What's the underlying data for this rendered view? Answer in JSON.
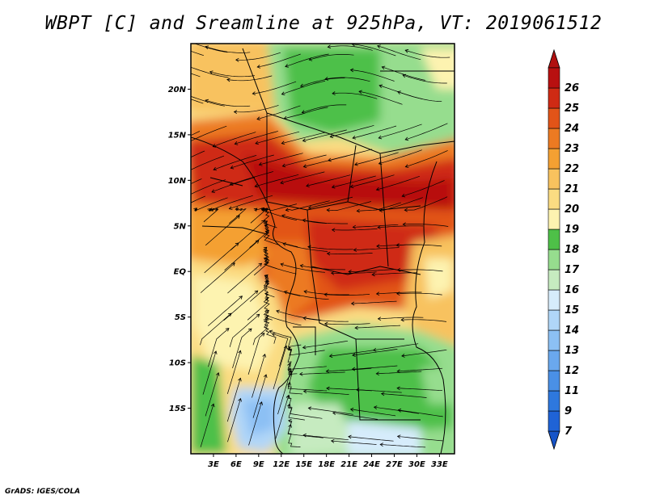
{
  "title": "WBPT [C] and Sreamline at 925hPa, VT: 2019061512",
  "footer": "GrADS: IGES/COLA",
  "map": {
    "lon_range": [
      0,
      35
    ],
    "lat_range": [
      -20,
      25
    ],
    "lat_ticks": [
      {
        "value": 20,
        "label": "20N"
      },
      {
        "value": 15,
        "label": "15N"
      },
      {
        "value": 10,
        "label": "10N"
      },
      {
        "value": 5,
        "label": "5N"
      },
      {
        "value": 0,
        "label": "EQ"
      },
      {
        "value": -5,
        "label": "5S"
      },
      {
        "value": -10,
        "label": "10S"
      },
      {
        "value": -15,
        "label": "15S"
      }
    ],
    "lon_ticks": [
      {
        "value": 3,
        "label": "3E"
      },
      {
        "value": 6,
        "label": "6E"
      },
      {
        "value": 9,
        "label": "9E"
      },
      {
        "value": 12,
        "label": "12E"
      },
      {
        "value": 15,
        "label": "15E"
      },
      {
        "value": 18,
        "label": "18E"
      },
      {
        "value": 21,
        "label": "21E"
      },
      {
        "value": 24,
        "label": "24E"
      },
      {
        "value": 27,
        "label": "27E"
      },
      {
        "value": 30,
        "label": "30E"
      },
      {
        "value": 33,
        "label": "33E"
      }
    ]
  },
  "colorbar": {
    "levels": [
      {
        "label": "7",
        "color": "#1f63d6"
      },
      {
        "label": "9",
        "color": "#2e78de"
      },
      {
        "label": "11",
        "color": "#4a90e6"
      },
      {
        "label": "12",
        "color": "#6aa8ee"
      },
      {
        "label": "13",
        "color": "#8cc0f4"
      },
      {
        "label": "14",
        "color": "#b0d6f8"
      },
      {
        "label": "15",
        "color": "#d6ecfb"
      },
      {
        "label": "16",
        "color": "#c6ebc0"
      },
      {
        "label": "17",
        "color": "#96dd8e"
      },
      {
        "label": "18",
        "color": "#4ec048"
      },
      {
        "label": "19",
        "color": "#fdf3b0"
      },
      {
        "label": "20",
        "color": "#fbdc82"
      },
      {
        "label": "21",
        "color": "#f8c25e"
      },
      {
        "label": "22",
        "color": "#f4a032"
      },
      {
        "label": "23",
        "color": "#ec7a22"
      },
      {
        "label": "24",
        "color": "#e25418"
      },
      {
        "label": "25",
        "color": "#cf2a14"
      },
      {
        "label": "26",
        "color": "#b81010"
      }
    ],
    "low_end_color": "#1654c8",
    "high_end_color": "#b01010"
  },
  "regions": [
    {
      "name": "north-saharan-edge",
      "level": "20"
    },
    {
      "name": "north-cool-patch",
      "level": "17"
    },
    {
      "name": "sahel-hot-belt",
      "level": "25"
    },
    {
      "name": "central-africa-hot",
      "level": "24"
    },
    {
      "name": "atlantic-warm-tongue",
      "level": "21"
    },
    {
      "name": "atlantic-cool",
      "level": "19"
    },
    {
      "name": "southern-africa-cool",
      "level": "17"
    },
    {
      "name": "angola-coast-cold",
      "level": "13"
    }
  ]
}
